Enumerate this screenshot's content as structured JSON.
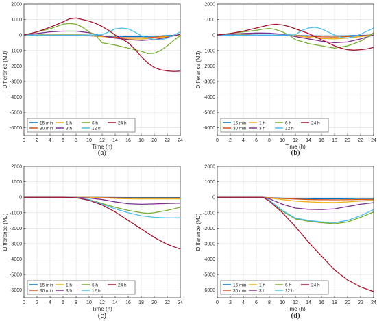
{
  "chart_data": [
    {
      "type": "line",
      "caption": "(a)",
      "xlabel": "Time (h)",
      "ylabel": "Difference (MJ)",
      "xlim": [
        0,
        24
      ],
      "ylim": [
        -6500,
        2000
      ],
      "xticks": [
        "0",
        "2",
        "4",
        "6",
        "8",
        "10",
        "12",
        "14",
        "16",
        "18",
        "20",
        "22",
        "24"
      ],
      "yticks": [
        "2000",
        "1000",
        "0",
        "-1000",
        "-2000",
        "-3000",
        "-4000",
        "-5000",
        "-6000"
      ],
      "grid": true,
      "legend_position": "bottom-left",
      "series": [
        {
          "name": "15 min",
          "color": "#0072BD",
          "x": [
            0,
            2,
            4,
            6,
            8,
            10,
            12,
            14,
            16,
            18,
            20,
            22,
            24
          ],
          "y": [
            0,
            0,
            0,
            0,
            0,
            -20,
            -60,
            -80,
            -100,
            -100,
            -80,
            -40,
            0
          ]
        },
        {
          "name": "30 min",
          "color": "#D95319",
          "x": [
            0,
            2,
            4,
            6,
            8,
            10,
            12,
            14,
            16,
            18,
            20,
            22,
            24
          ],
          "y": [
            0,
            0,
            0,
            0,
            -10,
            -50,
            -100,
            -150,
            -180,
            -180,
            -150,
            -80,
            0
          ]
        },
        {
          "name": "1 h",
          "color": "#EDB120",
          "x": [
            0,
            2,
            4,
            6,
            8,
            10,
            12,
            14,
            16,
            18,
            20,
            22,
            24
          ],
          "y": [
            0,
            20,
            40,
            50,
            40,
            0,
            -100,
            -200,
            -250,
            -260,
            -200,
            -100,
            0
          ]
        },
        {
          "name": "3 h",
          "color": "#7E2F8E",
          "x": [
            0,
            2,
            4,
            6,
            8,
            10,
            12,
            14,
            16,
            18,
            20,
            22,
            24
          ],
          "y": [
            0,
            100,
            200,
            250,
            250,
            150,
            -50,
            -200,
            -300,
            -350,
            -300,
            -150,
            50
          ]
        },
        {
          "name": "6 h",
          "color": "#77AC30",
          "x": [
            0,
            2,
            4,
            6,
            7,
            8,
            9,
            10,
            11,
            12,
            14,
            16,
            18,
            19,
            20,
            21,
            22,
            23,
            24
          ],
          "y": [
            0,
            200,
            400,
            700,
            750,
            700,
            500,
            200,
            0,
            -500,
            -650,
            -850,
            -1050,
            -1200,
            -1180,
            -1000,
            -700,
            -350,
            -50
          ]
        },
        {
          "name": "12 h",
          "color": "#4DBEEE",
          "x": [
            0,
            2,
            4,
            6,
            8,
            10,
            12,
            13,
            14,
            15,
            16,
            17,
            18,
            19,
            20,
            21,
            22,
            23,
            24
          ],
          "y": [
            0,
            0,
            0,
            0,
            0,
            0,
            20,
            200,
            400,
            450,
            400,
            200,
            -50,
            -200,
            -300,
            -300,
            -200,
            0,
            200
          ]
        },
        {
          "name": "24 h",
          "color": "#A2142F",
          "x": [
            0,
            2,
            4,
            6,
            7,
            8,
            9,
            10,
            11,
            12,
            13,
            14,
            15,
            16,
            17,
            18,
            19,
            20,
            21,
            22,
            23,
            24
          ],
          "y": [
            0,
            200,
            500,
            850,
            1050,
            1100,
            1000,
            900,
            750,
            550,
            300,
            0,
            -250,
            -500,
            -900,
            -1400,
            -1800,
            -2100,
            -2250,
            -2320,
            -2350,
            -2330
          ]
        }
      ]
    },
    {
      "type": "line",
      "caption": "(b)",
      "xlabel": "Time (h)",
      "ylabel": "Difference (MJ)",
      "xlim": [
        0,
        24
      ],
      "ylim": [
        -6500,
        2000
      ],
      "xticks": [
        "0",
        "2",
        "4",
        "6",
        "8",
        "10",
        "12",
        "14",
        "16",
        "18",
        "20",
        "22",
        "24"
      ],
      "yticks": [
        "2000",
        "1000",
        "0",
        "-1000",
        "-2000",
        "-3000",
        "-4000",
        "-5000",
        "-6000"
      ],
      "grid": true,
      "legend_position": "bottom-left",
      "series": [
        {
          "name": "15 min",
          "color": "#0072BD",
          "x": [
            0,
            2,
            4,
            6,
            8,
            10,
            12,
            14,
            16,
            18,
            20,
            22,
            24
          ],
          "y": [
            0,
            0,
            0,
            0,
            0,
            -10,
            -30,
            -50,
            -60,
            -60,
            -50,
            -20,
            0
          ]
        },
        {
          "name": "30 min",
          "color": "#D95319",
          "x": [
            0,
            2,
            4,
            6,
            8,
            10,
            12,
            14,
            16,
            18,
            20,
            22,
            24
          ],
          "y": [
            0,
            20,
            50,
            80,
            90,
            50,
            -20,
            -80,
            -120,
            -130,
            -100,
            -50,
            0
          ]
        },
        {
          "name": "1 h",
          "color": "#EDB120",
          "x": [
            0,
            2,
            4,
            6,
            8,
            10,
            12,
            14,
            16,
            18,
            20,
            22,
            24
          ],
          "y": [
            0,
            40,
            80,
            100,
            90,
            40,
            -40,
            -150,
            -230,
            -250,
            -200,
            -100,
            0
          ]
        },
        {
          "name": "3 h",
          "color": "#7E2F8E",
          "x": [
            0,
            2,
            4,
            6,
            8,
            10,
            12,
            14,
            16,
            18,
            20,
            22,
            24
          ],
          "y": [
            0,
            50,
            100,
            130,
            120,
            50,
            -100,
            -250,
            -400,
            -500,
            -450,
            -250,
            0
          ]
        },
        {
          "name": "6 h",
          "color": "#77AC30",
          "x": [
            0,
            2,
            4,
            6,
            7,
            8,
            9,
            10,
            11,
            12,
            14,
            16,
            18,
            20,
            22,
            23,
            24
          ],
          "y": [
            0,
            100,
            200,
            300,
            380,
            430,
            350,
            200,
            0,
            -300,
            -550,
            -700,
            -850,
            -700,
            -400,
            -150,
            150
          ]
        },
        {
          "name": "12 h",
          "color": "#4DBEEE",
          "x": [
            0,
            2,
            4,
            6,
            8,
            10,
            12,
            13,
            14,
            15,
            16,
            17,
            18,
            19,
            20,
            21,
            22,
            23,
            24
          ],
          "y": [
            0,
            0,
            0,
            0,
            0,
            0,
            20,
            300,
            450,
            500,
            400,
            200,
            0,
            -150,
            -200,
            -100,
            50,
            250,
            450
          ]
        },
        {
          "name": "24 h",
          "color": "#A2142F",
          "x": [
            0,
            2,
            4,
            6,
            8,
            9,
            10,
            11,
            12,
            13,
            14,
            15,
            16,
            17,
            18,
            19,
            20,
            21,
            22,
            23,
            24
          ],
          "y": [
            0,
            100,
            250,
            450,
            650,
            700,
            650,
            550,
            400,
            250,
            100,
            -100,
            -300,
            -500,
            -700,
            -850,
            -950,
            -980,
            -950,
            -900,
            -800
          ]
        }
      ]
    },
    {
      "type": "line",
      "caption": "(c)",
      "xlabel": "Time (h)",
      "ylabel": "Difference (MJ)",
      "xlim": [
        0,
        24
      ],
      "ylim": [
        -6500,
        2000
      ],
      "xticks": [
        "0",
        "2",
        "4",
        "6",
        "8",
        "10",
        "12",
        "14",
        "16",
        "18",
        "20",
        "22",
        "24"
      ],
      "yticks": [
        "2000",
        "1000",
        "0",
        "-1000",
        "-2000",
        "-3000",
        "-4000",
        "-5000",
        "-6000"
      ],
      "grid": true,
      "legend_position": "bottom-left",
      "series": [
        {
          "name": "15 min",
          "color": "#0072BD",
          "x": [
            0,
            2,
            4,
            6,
            8,
            10,
            12,
            14,
            16,
            18,
            20,
            22,
            24
          ],
          "y": [
            0,
            0,
            0,
            0,
            0,
            -5,
            -10,
            -15,
            -20,
            -20,
            -20,
            -20,
            -20
          ]
        },
        {
          "name": "30 min",
          "color": "#D95319",
          "x": [
            0,
            2,
            4,
            6,
            8,
            10,
            12,
            14,
            16,
            18,
            20,
            22,
            24
          ],
          "y": [
            0,
            0,
            0,
            0,
            0,
            -10,
            -20,
            -40,
            -50,
            -50,
            -50,
            -50,
            -50
          ]
        },
        {
          "name": "1 h",
          "color": "#EDB120",
          "x": [
            0,
            2,
            4,
            6,
            8,
            10,
            12,
            14,
            16,
            18,
            20,
            22,
            24
          ],
          "y": [
            0,
            0,
            0,
            0,
            0,
            -10,
            -40,
            -80,
            -100,
            -110,
            -110,
            -110,
            -110
          ]
        },
        {
          "name": "3 h",
          "color": "#7E2F8E",
          "x": [
            0,
            2,
            4,
            6,
            8,
            10,
            12,
            14,
            16,
            18,
            20,
            22,
            24
          ],
          "y": [
            0,
            0,
            0,
            0,
            -10,
            -50,
            -150,
            -300,
            -420,
            -450,
            -430,
            -400,
            -380
          ]
        },
        {
          "name": "6 h",
          "color": "#77AC30",
          "x": [
            0,
            2,
            4,
            6,
            8,
            10,
            12,
            14,
            16,
            18,
            19,
            20,
            22,
            24
          ],
          "y": [
            0,
            0,
            0,
            0,
            -20,
            -150,
            -400,
            -650,
            -850,
            -1000,
            -1050,
            -1000,
            -850,
            -650
          ]
        },
        {
          "name": "12 h",
          "color": "#4DBEEE",
          "x": [
            0,
            2,
            4,
            6,
            8,
            10,
            12,
            14,
            16,
            18,
            20,
            22,
            24
          ],
          "y": [
            0,
            0,
            0,
            0,
            -20,
            -150,
            -450,
            -750,
            -1000,
            -1200,
            -1300,
            -1330,
            -1330
          ]
        },
        {
          "name": "24 h",
          "color": "#A2142F",
          "x": [
            0,
            2,
            4,
            6,
            8,
            10,
            12,
            14,
            16,
            18,
            20,
            22,
            24
          ],
          "y": [
            0,
            0,
            0,
            0,
            -30,
            -200,
            -500,
            -950,
            -1500,
            -2050,
            -2600,
            -3050,
            -3350
          ]
        }
      ]
    },
    {
      "type": "line",
      "caption": "(d)",
      "xlabel": "Time (h)",
      "ylabel": "Difference (MJ)",
      "xlim": [
        0,
        24
      ],
      "ylim": [
        -6500,
        2000
      ],
      "xticks": [
        "0",
        "2",
        "4",
        "6",
        "8",
        "10",
        "12",
        "14",
        "16",
        "18",
        "20",
        "22",
        "24"
      ],
      "yticks": [
        "2000",
        "1000",
        "0",
        "-1000",
        "-2000",
        "-3000",
        "-4000",
        "-5000",
        "-6000"
      ],
      "grid": true,
      "legend_position": "bottom-left",
      "series": [
        {
          "name": "15 min",
          "color": "#0072BD",
          "x": [
            0,
            2,
            4,
            6,
            7,
            8,
            10,
            12,
            14,
            16,
            18,
            20,
            22,
            24
          ],
          "y": [
            0,
            0,
            0,
            0,
            0,
            -30,
            -60,
            -80,
            -90,
            -100,
            -100,
            -90,
            -80,
            -80
          ]
        },
        {
          "name": "30 min",
          "color": "#D95319",
          "x": [
            0,
            2,
            4,
            6,
            7,
            8,
            10,
            12,
            14,
            16,
            18,
            20,
            22,
            24
          ],
          "y": [
            0,
            0,
            0,
            0,
            0,
            -30,
            -80,
            -120,
            -150,
            -160,
            -170,
            -160,
            -150,
            -150
          ]
        },
        {
          "name": "1 h",
          "color": "#EDB120",
          "x": [
            0,
            2,
            4,
            6,
            7,
            8,
            10,
            12,
            14,
            16,
            18,
            20,
            22,
            24
          ],
          "y": [
            0,
            0,
            0,
            0,
            0,
            -50,
            -150,
            -250,
            -300,
            -330,
            -340,
            -300,
            -250,
            -200
          ]
        },
        {
          "name": "3 h",
          "color": "#7E2F8E",
          "x": [
            0,
            2,
            4,
            6,
            7,
            8,
            10,
            12,
            14,
            16,
            18,
            20,
            22,
            24
          ],
          "y": [
            0,
            0,
            0,
            0,
            0,
            -100,
            -450,
            -700,
            -780,
            -800,
            -750,
            -600,
            -450,
            -350
          ]
        },
        {
          "name": "6 h",
          "color": "#77AC30",
          "x": [
            0,
            2,
            4,
            6,
            7,
            8,
            10,
            12,
            14,
            16,
            18,
            20,
            22,
            24
          ],
          "y": [
            0,
            0,
            0,
            0,
            0,
            -200,
            -900,
            -1400,
            -1550,
            -1650,
            -1720,
            -1600,
            -1300,
            -950
          ]
        },
        {
          "name": "12 h",
          "color": "#4DBEEE",
          "x": [
            0,
            2,
            4,
            6,
            7,
            8,
            10,
            12,
            14,
            16,
            18,
            20,
            22,
            24
          ],
          "y": [
            0,
            0,
            0,
            0,
            0,
            -200,
            -850,
            -1350,
            -1500,
            -1600,
            -1650,
            -1500,
            -1200,
            -800
          ]
        },
        {
          "name": "24 h",
          "color": "#A2142F",
          "x": [
            0,
            2,
            4,
            6,
            7,
            8,
            10,
            12,
            14,
            16,
            18,
            20,
            22,
            24
          ],
          "y": [
            0,
            0,
            0,
            0,
            0,
            -250,
            -1000,
            -1900,
            -2900,
            -3800,
            -4700,
            -5350,
            -5800,
            -6100
          ]
        }
      ]
    }
  ]
}
